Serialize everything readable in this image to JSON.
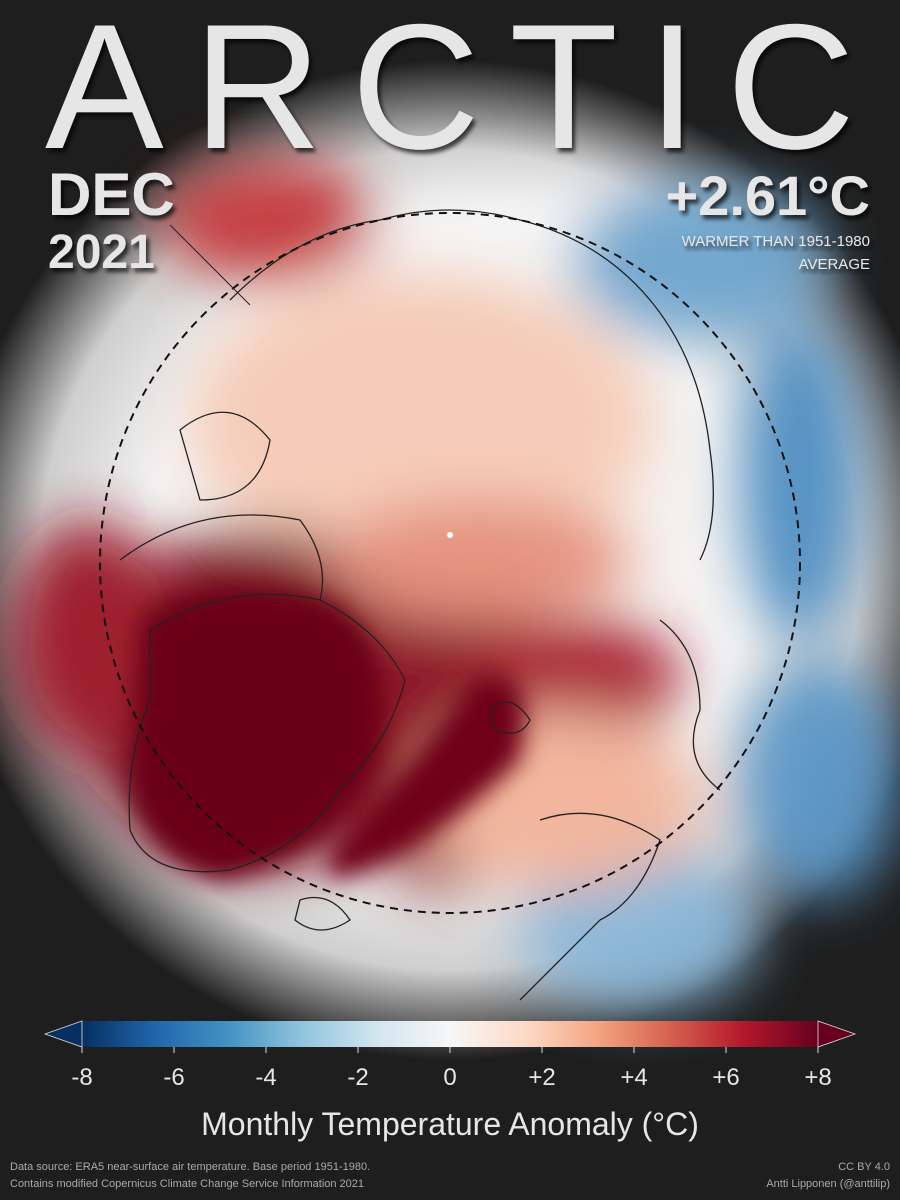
{
  "title": "ARCTIC",
  "date": {
    "month": "DEC",
    "year": "2021"
  },
  "anomaly": {
    "value": "+2.61°C",
    "note": [
      "WARMER THAN 1951-1980",
      "AVERAGE"
    ]
  },
  "colorbar": {
    "label": "Monthly Temperature Anomaly (°C)",
    "lim": [
      -8,
      8
    ],
    "colors": [
      "#053061",
      "#2166ac",
      "#4393c3",
      "#92c5de",
      "#d1e5f0",
      "#f7f7f7",
      "#fddbc7",
      "#f4a582",
      "#d6604d",
      "#b2182b",
      "#67001f"
    ],
    "ticks": [
      -8,
      -6,
      -4,
      -2,
      0,
      {
        "value": 2,
        "label": "+2"
      },
      {
        "value": 4,
        "label": "+4"
      },
      {
        "value": 6,
        "label": "+6"
      },
      {
        "value": 8,
        "label": "+8"
      }
    ]
  },
  "footer": {
    "left": [
      "Data source: ERA5 near-surface air temperature. Base period 1951-1980.",
      "Contains modified Copernicus Climate Change Service Information 2021"
    ],
    "right": [
      "CC BY 4.0",
      "Antti Lipponen (@anttilip)"
    ]
  }
}
